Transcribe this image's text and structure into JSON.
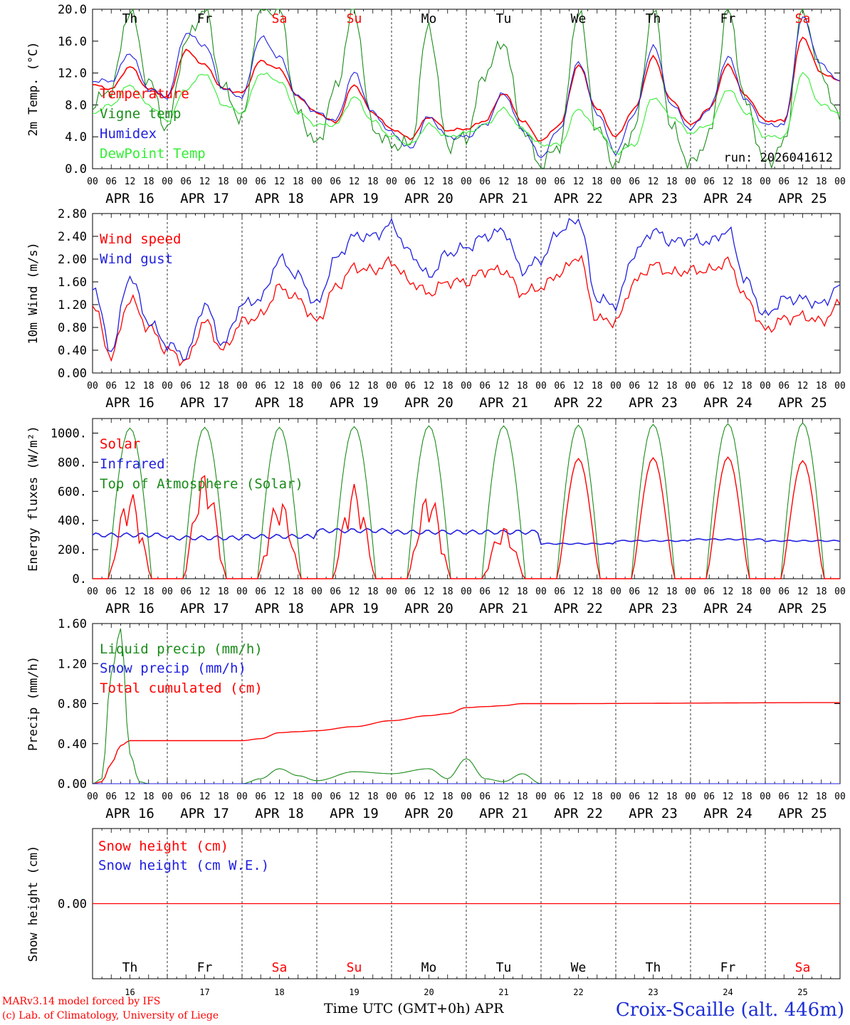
{
  "run_label": "run: 2026041612",
  "footer": {
    "model": "MARv3.14 model forced by IFS",
    "copyright": "(c) Lab. of Climatology, University of Liege",
    "time_axis": "Time UTC (GMT+0h) APR",
    "station": "Croix-Scaille (alt. 446m)"
  },
  "colors": {
    "red": "#ff0000",
    "green": "#1a8c1a",
    "blue": "#1f1fe0",
    "light_green": "#33ee33",
    "station": "#1d2fd6"
  },
  "x_axis": {
    "days": [
      "APR 16",
      "APR 17",
      "APR 18",
      "APR 19",
      "APR 20",
      "APR 21",
      "APR 22",
      "APR 23",
      "APR 24",
      "APR 25"
    ],
    "weekdays": [
      "Th",
      "Fr",
      "Sa",
      "Su",
      "Mo",
      "Tu",
      "We",
      "Th",
      "Fr",
      "Sa"
    ],
    "weekend_flags": [
      false,
      false,
      true,
      true,
      false,
      false,
      false,
      false,
      false,
      true
    ],
    "day_numbers": [
      "16",
      "17",
      "18",
      "19",
      "20",
      "21",
      "22",
      "23",
      "24",
      "25"
    ],
    "hour_ticks": [
      "00",
      "06",
      "12",
      "18"
    ],
    "final_tick": "00"
  },
  "chart_data": [
    {
      "type": "line",
      "id": "temp",
      "ylabel": "2m Temp. (°C)",
      "ylim": [
        0,
        20
      ],
      "yticks": [
        "0.0",
        "4.0",
        "8.0",
        "12.0",
        "16.0",
        "20.0"
      ],
      "legend": [
        {
          "label": "Temperature",
          "color": "#ff0000"
        },
        {
          "label": "Vigne temp",
          "color": "#1a8c1a"
        },
        {
          "label": "Humidex",
          "color": "#1f1fe0"
        },
        {
          "label": "DewPoint Temp",
          "color": "#33ee33"
        }
      ],
      "x_hours": [
        0,
        6,
        12,
        18,
        24,
        30,
        36,
        42,
        48,
        54,
        60,
        66,
        72,
        78,
        84,
        90,
        96,
        102,
        108,
        114,
        120,
        126,
        132,
        138,
        144,
        150,
        156,
        162,
        168,
        174,
        180,
        186,
        192,
        198,
        204,
        210,
        216,
        222,
        228,
        234,
        240
      ],
      "series": [
        {
          "name": "Temperature",
          "color": "#ff0000",
          "values": [
            10.5,
            10,
            12.8,
            10,
            9,
            14.8,
            13,
            10,
            9.5,
            13.5,
            12.5,
            9,
            7,
            5.8,
            10.5,
            7,
            5,
            3.8,
            6.5,
            4.8,
            5,
            6,
            9.5,
            6,
            3.5,
            5.5,
            13,
            7.5,
            4,
            7.5,
            14,
            8.5,
            5.5,
            7.5,
            13,
            9,
            6,
            6,
            16.5,
            12,
            11
          ]
        },
        {
          "name": "Vigne temp",
          "color": "#1a8c1a",
          "values": [
            8,
            10,
            20,
            11,
            5,
            16,
            20,
            10,
            6,
            20,
            20,
            7,
            3,
            10,
            20,
            5,
            3,
            3,
            18,
            3,
            4,
            12,
            16,
            5,
            0.5,
            3,
            20,
            5,
            0.5,
            5,
            20,
            5,
            0.5,
            4,
            20,
            8,
            0.5,
            3,
            20,
            12,
            6
          ]
        },
        {
          "name": "Humidex",
          "color": "#1f1fe0",
          "values": [
            11,
            11,
            14.5,
            10,
            9,
            17,
            15.5,
            10,
            9,
            16.5,
            14,
            9,
            7,
            6,
            12,
            7,
            4.5,
            2.5,
            6.5,
            4,
            4,
            5.5,
            9.5,
            5,
            1.5,
            5,
            13.5,
            7,
            2,
            7,
            15.5,
            8,
            5,
            7.5,
            14,
            8.5,
            5.5,
            5.5,
            19,
            13,
            11
          ]
        },
        {
          "name": "DewPoint Temp",
          "color": "#33ee33",
          "values": [
            7,
            8,
            10.5,
            8,
            6,
            10,
            12,
            8,
            7,
            12,
            11,
            7,
            5.5,
            5.5,
            9,
            6,
            4,
            3,
            5.5,
            4,
            4.5,
            5.5,
            7.5,
            5,
            3,
            3,
            7.5,
            5,
            2,
            3,
            9,
            6.5,
            4.5,
            5.5,
            10,
            7,
            4,
            4,
            12,
            8,
            7
          ]
        }
      ]
    },
    {
      "type": "line",
      "id": "wind",
      "ylabel": "10m Wind (m/s)",
      "ylim": [
        0,
        2.8
      ],
      "yticks": [
        "0.00",
        "0.40",
        "0.80",
        "1.20",
        "1.60",
        "2.00",
        "2.40",
        "2.80"
      ],
      "legend": [
        {
          "label": "Wind speed",
          "color": "#ff0000"
        },
        {
          "label": "Wind gust",
          "color": "#1f1fe0"
        }
      ],
      "x_hours": [
        0,
        6,
        12,
        18,
        24,
        30,
        36,
        42,
        48,
        54,
        60,
        66,
        72,
        78,
        84,
        90,
        96,
        102,
        108,
        114,
        120,
        126,
        132,
        138,
        144,
        150,
        156,
        162,
        168,
        174,
        180,
        186,
        192,
        198,
        204,
        210,
        216,
        222,
        228,
        234,
        240
      ],
      "series": [
        {
          "name": "Wind speed",
          "color": "#ff0000",
          "values": [
            1.2,
            0.3,
            1.3,
            0.8,
            0.4,
            0.2,
            0.9,
            0.4,
            0.9,
            1.0,
            1.5,
            1.3,
            0.9,
            1.5,
            1.85,
            1.8,
            1.95,
            1.6,
            1.4,
            1.6,
            1.6,
            1.8,
            1.8,
            1.4,
            1.5,
            1.75,
            2.05,
            0.95,
            0.9,
            1.6,
            1.9,
            1.75,
            1.8,
            1.8,
            1.95,
            1.3,
            0.75,
            0.95,
            1.0,
            0.9,
            1.2
          ]
        },
        {
          "name": "Wind gust",
          "color": "#1f1fe0",
          "values": [
            1.55,
            0.4,
            1.7,
            0.9,
            0.5,
            0.3,
            1.2,
            0.5,
            1.2,
            1.3,
            2.0,
            1.7,
            1.2,
            2.0,
            2.4,
            2.4,
            2.6,
            2.1,
            1.7,
            2.1,
            2.2,
            2.4,
            2.5,
            1.8,
            2.0,
            2.5,
            2.7,
            1.3,
            1.2,
            2.1,
            2.5,
            2.3,
            2.35,
            2.3,
            2.5,
            1.6,
            1.0,
            1.3,
            1.3,
            1.2,
            1.55
          ]
        }
      ]
    },
    {
      "type": "line",
      "id": "energy",
      "ylabel": "Energy fluxes (W/m²)",
      "ylim": [
        0,
        1100
      ],
      "yticks": [
        "0.",
        "200.",
        "400.",
        "600.",
        "800.",
        "1000."
      ],
      "legend": [
        {
          "label": "Solar",
          "color": "#ff0000"
        },
        {
          "label": "Infrared",
          "color": "#1f1fe0"
        },
        {
          "label": "Top of Atmosphere (Solar)",
          "color": "#1a8c1a"
        }
      ],
      "toa_peak": [
        1035,
        1040,
        1040,
        1045,
        1050,
        1050,
        1055,
        1060,
        1065,
        1070
      ],
      "solar_peak": [
        600,
        740,
        560,
        650,
        600,
        360,
        825,
        830,
        835,
        810
      ],
      "infrared": [
        300,
        280,
        290,
        330,
        320,
        320,
        240,
        260,
        270,
        260
      ],
      "series_names": [
        "Solar",
        "Infrared",
        "Top of Atmosphere (Solar)"
      ]
    },
    {
      "type": "line",
      "id": "precip",
      "ylabel": "Precip (mm/h)",
      "ylim": [
        0,
        1.6
      ],
      "yticks": [
        "0.00",
        "0.40",
        "0.80",
        "1.20",
        "1.60"
      ],
      "legend": [
        {
          "label": "Liquid precip (mm/h)",
          "color": "#1a8c1a"
        },
        {
          "label": "Snow precip (mm/h)",
          "color": "#1f1fe0"
        },
        {
          "label": "Total cumulated (cm)",
          "color": "#ff0000"
        }
      ],
      "x_hours": [
        0,
        3,
        6,
        9,
        12,
        15,
        18,
        24,
        48,
        54,
        60,
        66,
        72,
        84,
        96,
        108,
        114,
        120,
        126,
        132,
        138,
        144,
        240
      ],
      "series": [
        {
          "name": "Total cumulated (cm)",
          "color": "#ff0000",
          "values": [
            0,
            0.02,
            0.2,
            0.38,
            0.43,
            0.43,
            0.43,
            0.43,
            0.43,
            0.45,
            0.51,
            0.52,
            0.53,
            0.57,
            0.63,
            0.68,
            0.7,
            0.76,
            0.77,
            0.78,
            0.8,
            0.8,
            0.81
          ]
        },
        {
          "name": "Liquid precip (mm/h)",
          "color": "#1a8c1a",
          "values": [
            0,
            0.05,
            1.1,
            1.55,
            0.3,
            0.02,
            0,
            0,
            0,
            0.05,
            0.15,
            0.08,
            0.03,
            0.12,
            0.1,
            0.15,
            0.05,
            0.25,
            0.05,
            0.02,
            0.1,
            0,
            0
          ]
        },
        {
          "name": "Snow precip (mm/h)",
          "color": "#1f1fe0",
          "values": [
            0,
            0,
            0,
            0,
            0,
            0,
            0,
            0,
            0,
            0,
            0,
            0,
            0,
            0,
            0,
            0,
            0,
            0,
            0,
            0,
            0,
            0,
            0
          ]
        }
      ]
    },
    {
      "type": "line",
      "id": "snow",
      "ylabel": "Snow height (cm)",
      "ylim": [
        -1,
        1
      ],
      "yticks": [
        "0.00"
      ],
      "legend": [
        {
          "label": "Snow height (cm)",
          "color": "#ff0000"
        },
        {
          "label": "Snow height (cm W.E.)",
          "color": "#1f1fe0"
        }
      ],
      "series": [
        {
          "name": "Snow height (cm)",
          "color": "#ff0000",
          "values": [
            0,
            0
          ]
        },
        {
          "name": "Snow height (cm W.E.)",
          "color": "#1f1fe0",
          "values": [
            0,
            0
          ]
        }
      ]
    }
  ]
}
